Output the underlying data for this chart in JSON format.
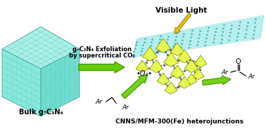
{
  "background_color": "#ffffff",
  "title_text": "CNNS/MFM-300(Fe) heterojunctions",
  "bulk_label": "Bulk g-C₃N₄",
  "arrow_label_line1": "g-C₃N₄ Exfoliation",
  "arrow_label_line2": "by supercritical CO₂",
  "visible_light_label": "Visible Light",
  "o2_label": "•O₂•",
  "cn_face_top": "#aaf0e8",
  "cn_face_right": "#70ddd0",
  "cn_face_left": "#88e8dc",
  "cn_line": "#50c0b0",
  "cn_edge": "#40a898",
  "sheet_color": "#90eeee",
  "sheet_line": "#50bbbb",
  "sheet_dot": "#20aaaa",
  "mof_color1": "#ccdd00",
  "mof_color2": "#aacc00",
  "mof_top": "#eeff55",
  "mof_edge": "#778800",
  "arrow_green": "#66cc00",
  "arrow_green_dark": "#449900",
  "light_yellow": "#e8c000",
  "light_yellow2": "#f5e060",
  "fig_width": 3.78,
  "fig_height": 1.84,
  "dpi": 100
}
